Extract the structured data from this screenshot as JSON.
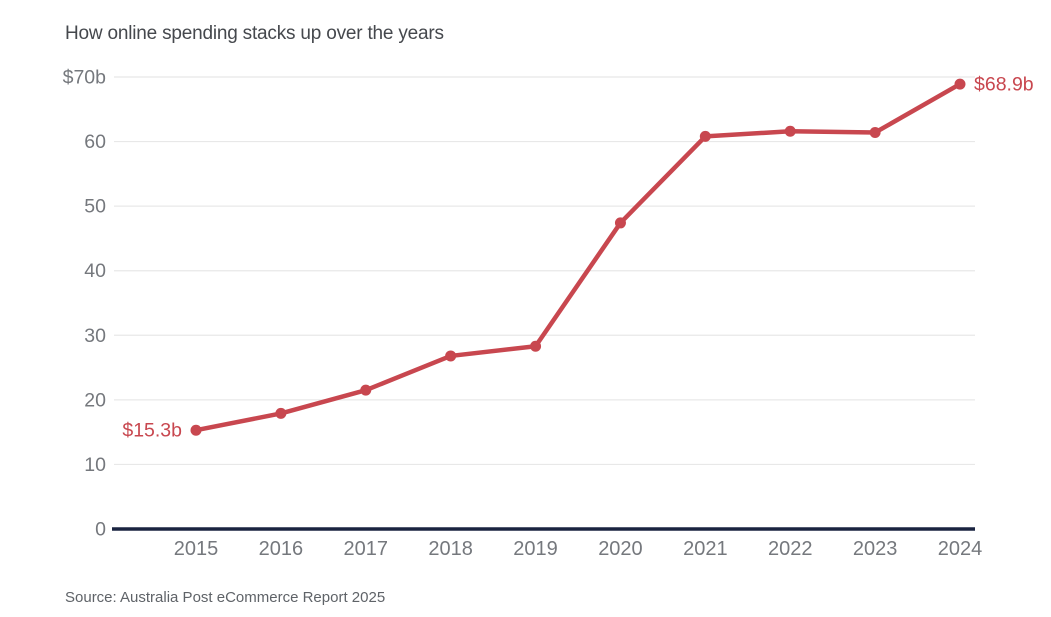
{
  "chart_data": {
    "type": "line",
    "title": "How online spending stacks up over the years",
    "source": "Source: Australia Post eCommerce Report 2025",
    "categories": [
      "2015",
      "2016",
      "2017",
      "2018",
      "2019",
      "2020",
      "2021",
      "2022",
      "2023",
      "2024"
    ],
    "values": [
      15.3,
      17.9,
      21.5,
      26.8,
      28.3,
      47.4,
      60.8,
      61.6,
      61.4,
      68.9
    ],
    "ylim": [
      0,
      70
    ],
    "y_ticks": [
      {
        "value": 0,
        "label": "0"
      },
      {
        "value": 10,
        "label": "10"
      },
      {
        "value": 20,
        "label": "20"
      },
      {
        "value": 30,
        "label": "30"
      },
      {
        "value": 40,
        "label": "40"
      },
      {
        "value": 50,
        "label": "50"
      },
      {
        "value": 60,
        "label": "60"
      },
      {
        "value": 70,
        "label": "$70b"
      }
    ],
    "grid": true,
    "legend": false,
    "annotations": [
      {
        "index": 0,
        "category": "2015",
        "text": "$15.3b",
        "side": "left"
      },
      {
        "index": 9,
        "category": "2024",
        "text": "$68.9b",
        "side": "right"
      }
    ],
    "colors": {
      "line": "#c8474f",
      "point": "#c8474f",
      "annotation": "#c8474f",
      "baseline": "#1a2440",
      "gridline": "#e8e8e8",
      "tick_label": "#75787d",
      "title": "#45484d",
      "source": "#5f6368"
    }
  }
}
